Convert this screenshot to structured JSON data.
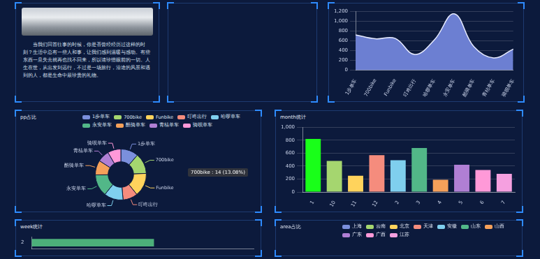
{
  "text_panel": {
    "paragraph": "当我们回首往事的时候，你是否曾经经历过这样的时刻？生活中总有一些人和事，让我们感到温暖与感动。有些东西一旦失去就再也找不回来，所以请珍惜眼前的一切。人生在世，从出发到远行，不过是一场旅行，沿途的风景和遇到的人，都是生命中最珍贵的礼物。"
  },
  "chart_data": [
    {
      "type": "area",
      "categories": [
        "1步单车",
        "700bike",
        "Funbike",
        "叮咚出行",
        "哈啰单车",
        "永安单车",
        "酷骑单车",
        "青桔单车",
        "骑呗单车"
      ],
      "values": [
        720,
        640,
        650,
        320,
        620,
        1150,
        480,
        250,
        430
      ],
      "color": "#6c7fd2",
      "ylim": [
        0,
        1200
      ],
      "yticks": [
        0,
        200,
        400,
        600,
        800,
        {
          "value": 1000,
          "label": "1,000"
        },
        {
          "value": 1200,
          "label": "1,200"
        }
      ],
      "grid": true
    },
    {
      "type": "pie",
      "title": "pp占比",
      "categories": [
        "1步单车",
        "700bike",
        "Funbike",
        "叮咚出行",
        "哈啰单车",
        "永安单车",
        "酷骑单车",
        "青桔单车",
        "骑呗单车"
      ],
      "values": [
        12,
        14,
        16,
        10,
        13,
        15,
        10,
        8,
        9
      ],
      "colors": [
        "#7b8fdc",
        "#a5d66f",
        "#ffd35c",
        "#f58c7d",
        "#7fcfee",
        "#52b788",
        "#f5a05a",
        "#b07fd4",
        "#ff99d8"
      ],
      "legend": "top",
      "annotation": "700bike : 14 (13.08%)"
    },
    {
      "type": "bar",
      "title": "month统计",
      "categories": [
        "1",
        "10",
        "11",
        "12",
        "2",
        "3",
        "4",
        "5",
        "6",
        "7"
      ],
      "values": [
        820,
        480,
        250,
        570,
        490,
        680,
        190,
        420,
        340,
        280
      ],
      "colors": [
        "#19ff19",
        "#a5d66f",
        "#ffd35c",
        "#f58c7d",
        "#7fcfee",
        "#52b788",
        "#f5a05a",
        "#b07fd4",
        "#ff99d8",
        "#f5a0e0"
      ],
      "ylim": [
        0,
        1000
      ],
      "yticks": [
        0,
        200,
        400,
        600,
        800,
        {
          "value": 1000,
          "label": "1,000"
        }
      ],
      "grid": true
    },
    {
      "type": "bar",
      "title": "week统计",
      "orientation": "horizontal",
      "categories": [
        "2"
      ],
      "values": [
        55
      ],
      "color": "#4caf7a",
      "xlim": [
        0,
        100
      ],
      "tick_labels": "y"
    },
    {
      "type": "pie",
      "title": "area占比",
      "categories": [
        "上海",
        "云南",
        "北京",
        "天津",
        "安徽",
        "山东",
        "山西",
        "广东",
        "广西",
        "江苏"
      ],
      "colors": [
        "#7b8fdc",
        "#a5d66f",
        "#ffd35c",
        "#f58c7d",
        "#7fcfee",
        "#52b788",
        "#f5a05a",
        "#b07fd4",
        "#ff99d8",
        "#f5a0e0"
      ],
      "legend": "top"
    }
  ]
}
